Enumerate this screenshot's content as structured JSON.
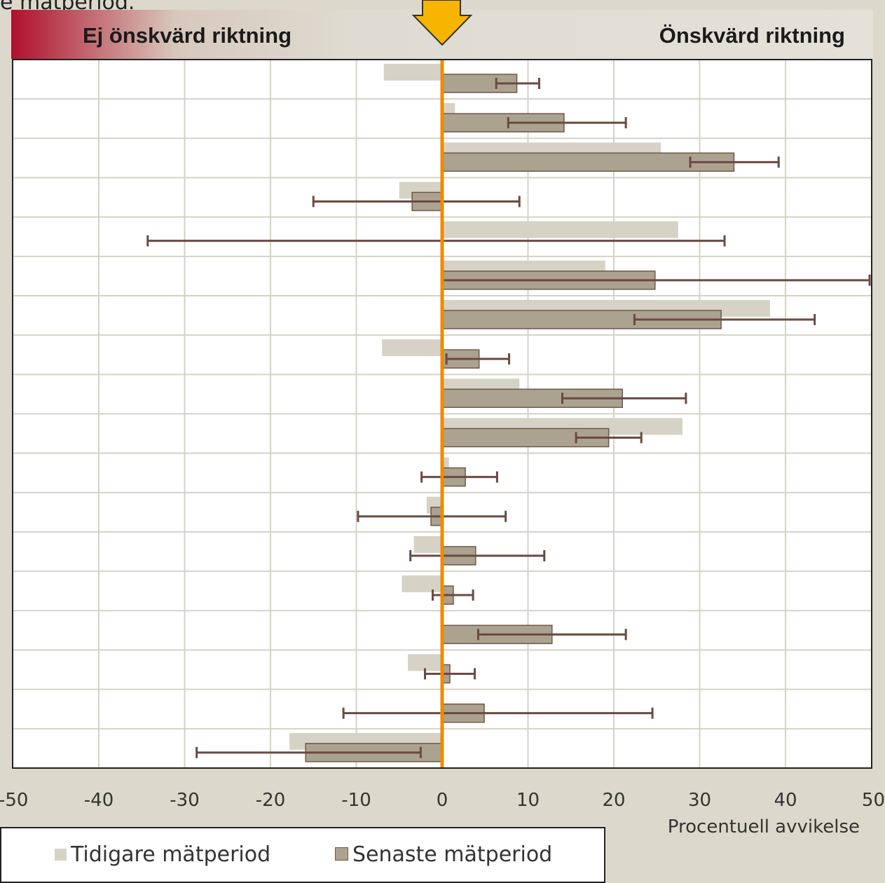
{
  "top_text": "e mätperiod.",
  "header": {
    "left_label": "Ej önskvärd riktning",
    "right_label": "Önskvärd riktning"
  },
  "colors": {
    "previous": "#d6d3c6",
    "latest": "#aca290",
    "latest_border": "#6b5a48",
    "error_bar": "#6b4a42",
    "zero_line": "#f08a00",
    "arrow": "#f7b500",
    "grid": "#d5d2c5",
    "plot_bg": "#ffffff"
  },
  "chart_data": {
    "type": "bar",
    "orientation": "horizontal",
    "xlabel": "Procentuell avvikelse",
    "xlim": [
      -50,
      50
    ],
    "xticks": [
      -50,
      -40,
      -30,
      -20,
      -10,
      0,
      10,
      20,
      30,
      40,
      50
    ],
    "grid": true,
    "legend_position": "bottom-left",
    "series": [
      {
        "name": "Tidigare mätperiod",
        "values": [
          -6.8,
          1.5,
          25.5,
          -5.0,
          27.5,
          19.0,
          38.2,
          -7.0,
          9.0,
          28.0,
          0.8,
          -1.8,
          -3.3,
          -4.7,
          0,
          -4.0,
          0,
          -17.8
        ]
      },
      {
        "name": "Senaste mätperiod",
        "values": [
          8.7,
          14.2,
          34.0,
          -3.5,
          0,
          24.8,
          32.5,
          4.3,
          21.0,
          19.4,
          2.7,
          -1.3,
          3.9,
          1.3,
          12.8,
          0.9,
          4.9,
          -15.9
        ],
        "error_low": [
          6.3,
          7.7,
          28.9,
          -15.0,
          -34.3,
          0,
          22.4,
          0.5,
          14.0,
          15.6,
          -2.4,
          -9.8,
          -3.7,
          -1.1,
          4.2,
          -2.0,
          -11.5,
          -28.6
        ],
        "error_high": [
          11.3,
          21.4,
          39.2,
          9.0,
          32.9,
          49.8,
          43.4,
          7.8,
          28.4,
          23.2,
          6.4,
          7.4,
          11.9,
          3.6,
          21.4,
          3.8,
          24.5,
          -2.5
        ]
      }
    ]
  },
  "legend": {
    "previous_label": "Tidigare mätperiod",
    "latest_label": "Senaste mätperiod"
  }
}
